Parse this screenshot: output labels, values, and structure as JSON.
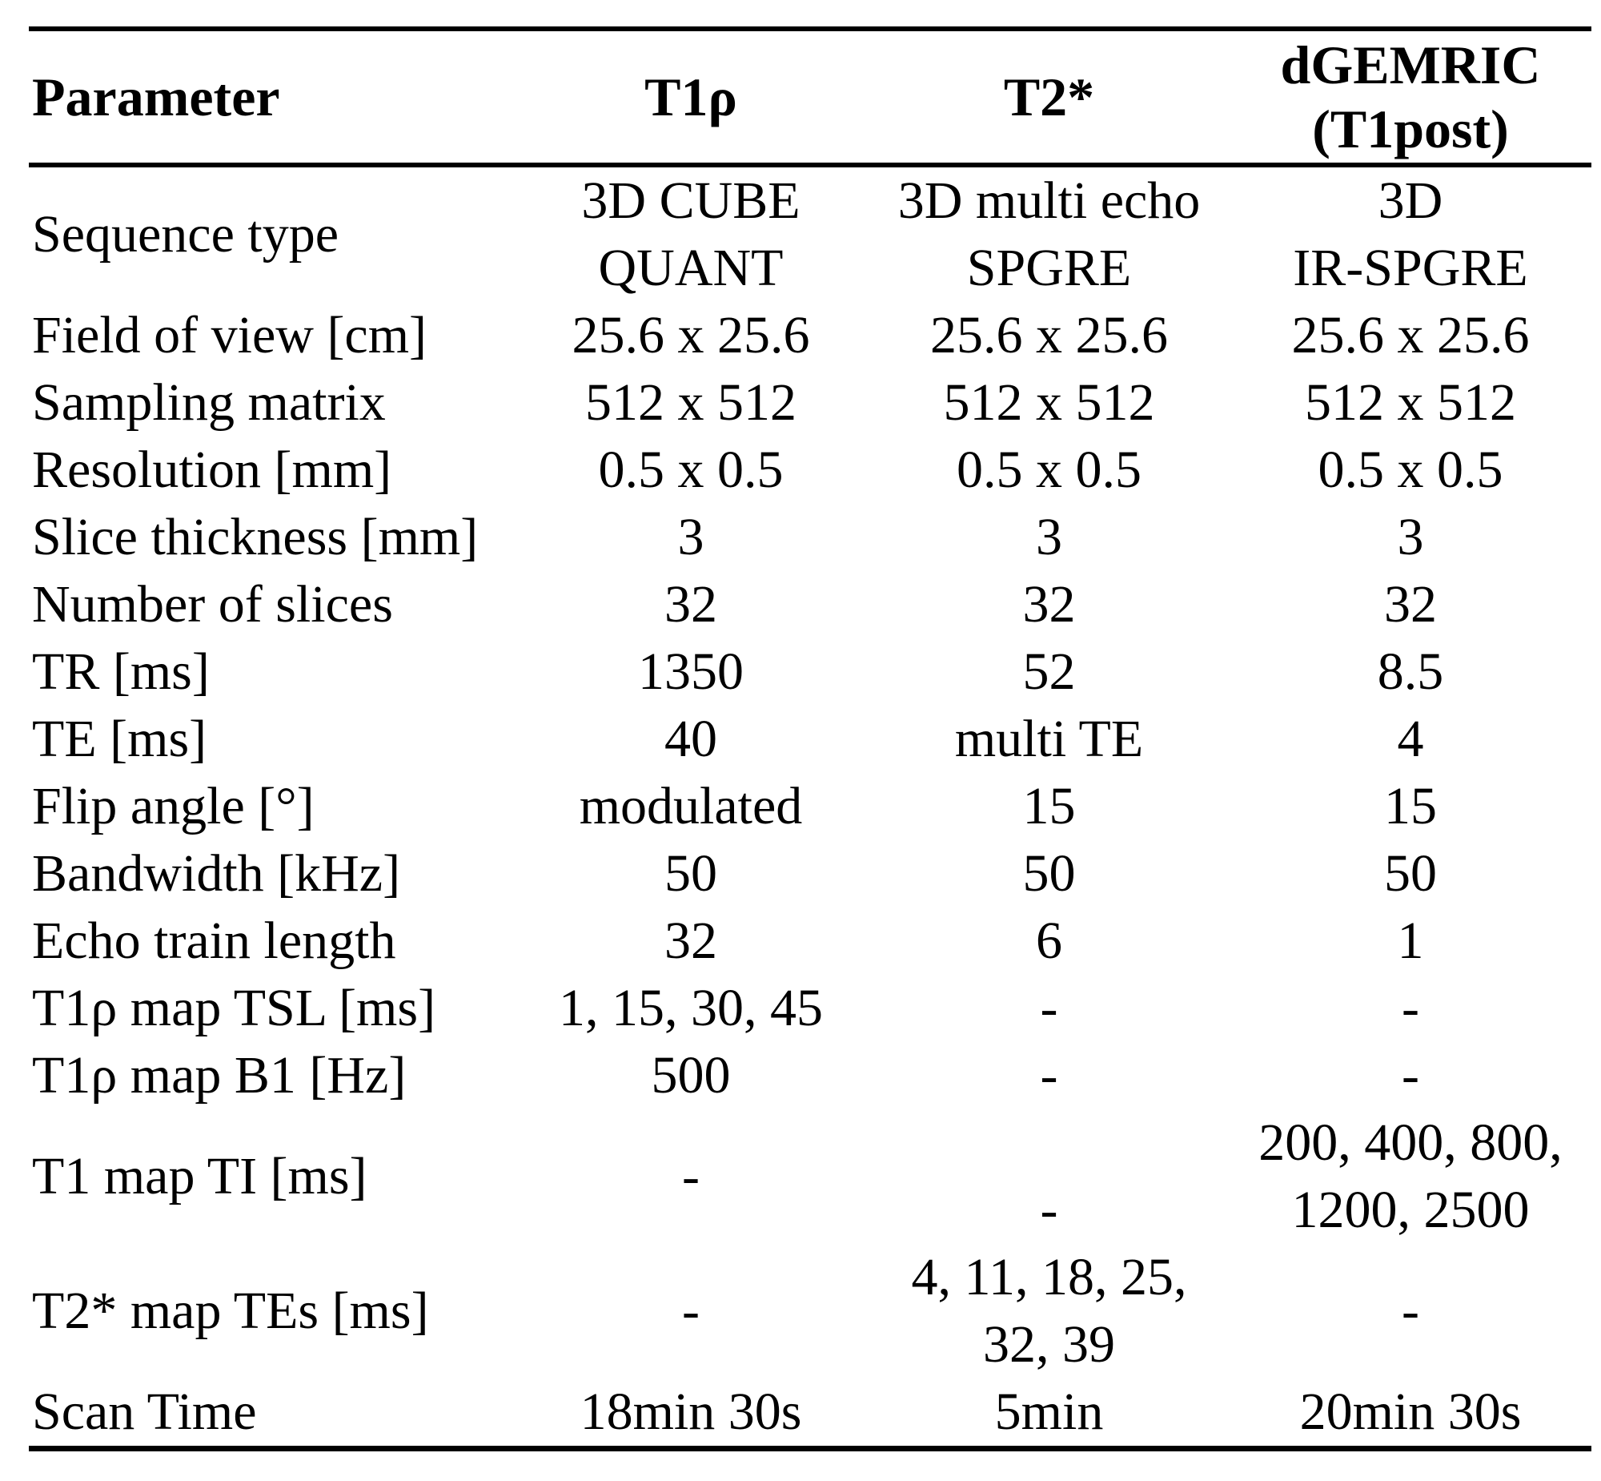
{
  "page": {
    "background_color": "#ffffff",
    "text_color": "#000000",
    "rule_color": "#000000"
  },
  "table": {
    "header": [
      "Parameter",
      "T1ρ",
      "T2*",
      "dGEMRIC\n(T1post)"
    ],
    "rows": [
      [
        "Sequence type",
        "3D CUBE\nQUANT",
        "3D multi echo\nSPGRE",
        "3D\nIR-SPGRE"
      ],
      [
        "Field of view [cm]",
        "25.6 x 25.6",
        "25.6 x 25.6",
        "25.6 x 25.6"
      ],
      [
        "Sampling matrix",
        "512 x 512",
        "512 x 512",
        "512 x 512"
      ],
      [
        "Resolution [mm]",
        "0.5 x 0.5",
        "0.5 x 0.5",
        "0.5 x 0.5"
      ],
      [
        "Slice thickness [mm]",
        "3",
        "3",
        "3"
      ],
      [
        "Number of slices",
        "32",
        "32",
        "32"
      ],
      [
        "TR [ms]",
        "1350",
        "52",
        "8.5"
      ],
      [
        "TE [ms]",
        "40",
        "multi TE",
        "4"
      ],
      [
        "Flip angle [°]",
        "modulated",
        "15",
        "15"
      ],
      [
        "Bandwidth [kHz]",
        "50",
        "50",
        "50"
      ],
      [
        "Echo train length",
        "32",
        "6",
        "1"
      ],
      [
        "T1ρ map TSL [ms]",
        "1, 15, 30, 45",
        "-",
        "-"
      ],
      [
        "T1ρ map B1 [Hz]",
        "500",
        "-",
        "-"
      ],
      [
        "T1 map TI [ms]",
        "-",
        "\n-",
        "200, 400, 800,\n1200, 2500"
      ],
      [
        "T2* map TEs [ms]",
        "-",
        "4, 11, 18, 25,\n32, 39",
        "-"
      ],
      [
        "Scan Time",
        "18min 30s",
        "5min",
        "20min 30s"
      ]
    ]
  }
}
